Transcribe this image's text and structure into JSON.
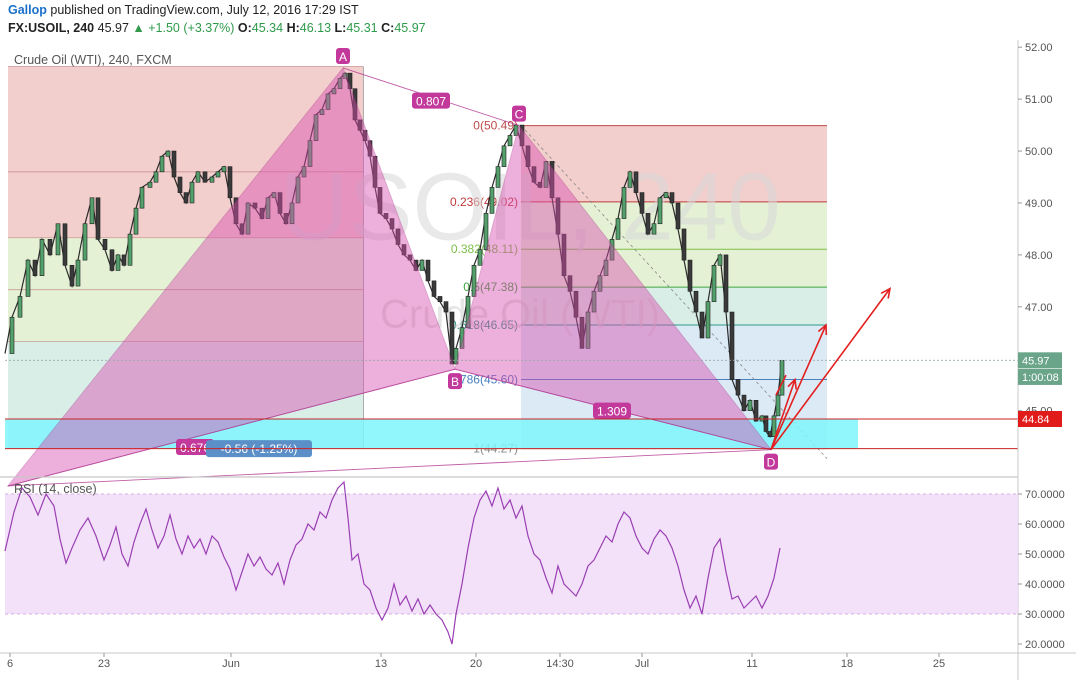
{
  "header": {
    "author": "Gallop",
    "published_text": "published on TradingView.com, July 12, 2016 17:29 IST",
    "symbol": "FX:USOIL, 240",
    "last": "45.97",
    "change": "+1.50 (+3.37%)",
    "ohlc": [
      {
        "label": "O:",
        "value": "45.34"
      },
      {
        "label": "H:",
        "value": "46.13"
      },
      {
        "label": "L:",
        "value": "45.31"
      },
      {
        "label": "C:",
        "value": "45.97"
      }
    ]
  },
  "chart_data": [
    {
      "type": "line",
      "title": "Crude Oil (WTI), 240, FXCM",
      "watermark": [
        "USOIL, 240",
        "Crude Oil (WTI)"
      ],
      "xlim": [
        0,
        1015
      ],
      "x_ticks": [
        {
          "label": "6",
          "x": 10
        },
        {
          "label": "23",
          "x": 104
        },
        {
          "label": "Jun",
          "x": 231
        },
        {
          "label": "13",
          "x": 381
        },
        {
          "label": "20",
          "x": 476
        },
        {
          "label": "14:30",
          "x": 560
        },
        {
          "label": "Jul",
          "x": 642
        },
        {
          "label": "11",
          "x": 752
        },
        {
          "label": "18",
          "x": 847
        },
        {
          "label": "25",
          "x": 939
        }
      ],
      "ylim": [
        43.8,
        52.1
      ],
      "y_ticks": [
        "52.00",
        "51.00",
        "50.00",
        "49.00",
        "48.00",
        "47.00",
        "45.00"
      ],
      "price_series": [
        [
          5,
          46.1
        ],
        [
          12,
          46.8
        ],
        [
          20,
          47.2
        ],
        [
          28,
          47.9
        ],
        [
          35,
          47.6
        ],
        [
          42,
          48.3
        ],
        [
          50,
          48.0
        ],
        [
          58,
          48.6
        ],
        [
          65,
          47.8
        ],
        [
          72,
          47.4
        ],
        [
          78,
          47.9
        ],
        [
          85,
          48.6
        ],
        [
          92,
          49.1
        ],
        [
          98,
          48.3
        ],
        [
          105,
          48.1
        ],
        [
          112,
          47.7
        ],
        [
          118,
          48.0
        ],
        [
          124,
          47.8
        ],
        [
          130,
          48.4
        ],
        [
          136,
          48.9
        ],
        [
          142,
          49.3
        ],
        [
          150,
          49.4
        ],
        [
          156,
          49.6
        ],
        [
          162,
          49.9
        ],
        [
          168,
          50.0
        ],
        [
          174,
          49.5
        ],
        [
          180,
          49.2
        ],
        [
          186,
          49.0
        ],
        [
          192,
          49.4
        ],
        [
          198,
          49.6
        ],
        [
          205,
          49.4
        ],
        [
          212,
          49.5
        ],
        [
          218,
          49.6
        ],
        [
          224,
          49.7
        ],
        [
          230,
          49.1
        ],
        [
          236,
          48.6
        ],
        [
          242,
          48.4
        ],
        [
          248,
          49.0
        ],
        [
          255,
          48.9
        ],
        [
          262,
          48.7
        ],
        [
          268,
          49.1
        ],
        [
          274,
          49.2
        ],
        [
          280,
          48.8
        ],
        [
          286,
          48.6
        ],
        [
          292,
          49.0
        ],
        [
          298,
          49.5
        ],
        [
          304,
          49.7
        ],
        [
          310,
          50.2
        ],
        [
          316,
          50.7
        ],
        [
          322,
          50.8
        ],
        [
          328,
          51.1
        ],
        [
          334,
          51.2
        ],
        [
          340,
          51.4
        ],
        [
          345,
          51.5
        ],
        [
          350,
          51.2
        ],
        [
          355,
          50.6
        ],
        [
          360,
          50.4
        ],
        [
          365,
          50.2
        ],
        [
          370,
          49.9
        ],
        [
          375,
          49.3
        ],
        [
          380,
          48.8
        ],
        [
          386,
          48.7
        ],
        [
          392,
          48.5
        ],
        [
          398,
          48.2
        ],
        [
          404,
          48.0
        ],
        [
          410,
          47.9
        ],
        [
          416,
          47.7
        ],
        [
          422,
          47.9
        ],
        [
          428,
          47.5
        ],
        [
          434,
          47.2
        ],
        [
          440,
          47.1
        ],
        [
          446,
          46.9
        ],
        [
          452,
          45.9
        ],
        [
          456,
          46.2
        ],
        [
          462,
          46.6
        ],
        [
          468,
          47.2
        ],
        [
          474,
          47.8
        ],
        [
          480,
          48.1
        ],
        [
          486,
          48.8
        ],
        [
          492,
          49.3
        ],
        [
          498,
          49.7
        ],
        [
          504,
          50.1
        ],
        [
          510,
          50.3
        ],
        [
          516,
          50.5
        ],
        [
          522,
          50.1
        ],
        [
          528,
          49.7
        ],
        [
          534,
          49.4
        ],
        [
          540,
          49.3
        ],
        [
          546,
          49.8
        ],
        [
          552,
          49.1
        ],
        [
          558,
          48.4
        ],
        [
          564,
          47.6
        ],
        [
          570,
          47.3
        ],
        [
          576,
          46.8
        ],
        [
          582,
          46.2
        ],
        [
          588,
          46.9
        ],
        [
          594,
          47.3
        ],
        [
          600,
          47.6
        ],
        [
          606,
          47.9
        ],
        [
          612,
          48.3
        ],
        [
          618,
          48.7
        ],
        [
          624,
          49.3
        ],
        [
          630,
          49.6
        ],
        [
          636,
          49.2
        ],
        [
          642,
          48.8
        ],
        [
          648,
          48.4
        ],
        [
          654,
          48.6
        ],
        [
          660,
          49.1
        ],
        [
          666,
          49.2
        ],
        [
          672,
          49.0
        ],
        [
          678,
          48.5
        ],
        [
          684,
          47.9
        ],
        [
          690,
          47.3
        ],
        [
          696,
          46.9
        ],
        [
          702,
          46.4
        ],
        [
          708,
          47.1
        ],
        [
          714,
          47.8
        ],
        [
          720,
          48.0
        ],
        [
          726,
          46.9
        ],
        [
          732,
          45.6
        ],
        [
          738,
          45.3
        ],
        [
          744,
          45.0
        ],
        [
          750,
          45.2
        ],
        [
          756,
          44.8
        ],
        [
          762,
          44.9
        ],
        [
          766,
          44.6
        ],
        [
          770,
          44.5
        ],
        [
          774,
          44.9
        ],
        [
          778,
          45.3
        ],
        [
          782,
          45.97
        ]
      ],
      "right_labels": [
        {
          "text": "45.97",
          "y": 45.97,
          "color": "#6aa58a"
        },
        {
          "text": "1:00:08",
          "y": 45.65,
          "color": "#6aa58a"
        },
        {
          "text": "44.84",
          "y": 44.84,
          "color": "#e11a1a"
        }
      ],
      "pattern_points": [
        {
          "label": "A",
          "x": 343,
          "price": 51.6
        },
        {
          "label": "B",
          "x": 455,
          "price": 45.8
        },
        {
          "label": "C",
          "x": 519,
          "price": 50.49
        },
        {
          "label": "D",
          "x": 771,
          "price": 44.25
        }
      ],
      "ratio_labels": [
        {
          "text": "0.807",
          "x": 431,
          "price": 50.97
        },
        {
          "text": "1.309",
          "x": 612,
          "price": 45.0
        },
        {
          "text": "0.676",
          "x": 195,
          "price": 44.3
        }
      ],
      "measure_label": {
        "text": "-0.56 (-1.25%)",
        "x": 259,
        "price": 44.28
      },
      "fib_levels": [
        {
          "label": "0(50.49)",
          "ratio": 0,
          "price": 50.49
        },
        {
          "label": "0.236(49.02)",
          "ratio": 0.236,
          "price": 49.02
        },
        {
          "label": "0.382(48.11)",
          "ratio": 0.382,
          "price": 48.11
        },
        {
          "label": "0.5(47.38)",
          "ratio": 0.5,
          "price": 47.38
        },
        {
          "label": "0.618(46.65)",
          "ratio": 0.618,
          "price": 46.65
        },
        {
          "label": "0.786(45.60)",
          "ratio": 0.786,
          "price": 45.6
        },
        {
          "label": "1(44.27)",
          "ratio": 1,
          "price": 44.27
        }
      ],
      "left_fib_levels": [
        51.63,
        49.6,
        48.33,
        47.33,
        46.33,
        44.84,
        44.27
      ],
      "hlines": [
        44.84,
        44.27
      ]
    },
    {
      "type": "line",
      "title": "RSI (14, close)",
      "ylim": [
        18,
        74
      ],
      "y_ticks": [
        "70.0000",
        "60.0000",
        "50.0000",
        "40.0000",
        "30.0000",
        "20.0000"
      ],
      "band": [
        30,
        70
      ],
      "rsi_series": [
        [
          5,
          51
        ],
        [
          14,
          64
        ],
        [
          22,
          72
        ],
        [
          30,
          69
        ],
        [
          38,
          63
        ],
        [
          46,
          70
        ],
        [
          54,
          66
        ],
        [
          60,
          55
        ],
        [
          66,
          47
        ],
        [
          72,
          52
        ],
        [
          80,
          58
        ],
        [
          88,
          62
        ],
        [
          96,
          56
        ],
        [
          104,
          48
        ],
        [
          110,
          53
        ],
        [
          116,
          59
        ],
        [
          122,
          50
        ],
        [
          128,
          46
        ],
        [
          134,
          54
        ],
        [
          140,
          60
        ],
        [
          146,
          65
        ],
        [
          152,
          58
        ],
        [
          158,
          52
        ],
        [
          164,
          56
        ],
        [
          170,
          63
        ],
        [
          176,
          55
        ],
        [
          182,
          50
        ],
        [
          188,
          56
        ],
        [
          194,
          52
        ],
        [
          200,
          55
        ],
        [
          206,
          50
        ],
        [
          212,
          56
        ],
        [
          218,
          54
        ],
        [
          224,
          49
        ],
        [
          230,
          45
        ],
        [
          236,
          38
        ],
        [
          242,
          44
        ],
        [
          248,
          50
        ],
        [
          254,
          46
        ],
        [
          260,
          49
        ],
        [
          266,
          45
        ],
        [
          272,
          43
        ],
        [
          278,
          47
        ],
        [
          284,
          40
        ],
        [
          290,
          48
        ],
        [
          296,
          53
        ],
        [
          302,
          55
        ],
        [
          308,
          60
        ],
        [
          314,
          58
        ],
        [
          320,
          64
        ],
        [
          326,
          62
        ],
        [
          332,
          68
        ],
        [
          338,
          72
        ],
        [
          344,
          74
        ],
        [
          348,
          62
        ],
        [
          352,
          48
        ],
        [
          358,
          50
        ],
        [
          364,
          40
        ],
        [
          370,
          38
        ],
        [
          376,
          32
        ],
        [
          382,
          28
        ],
        [
          388,
          32
        ],
        [
          394,
          40
        ],
        [
          400,
          33
        ],
        [
          406,
          36
        ],
        [
          412,
          31
        ],
        [
          418,
          35
        ],
        [
          424,
          30
        ],
        [
          430,
          33
        ],
        [
          436,
          30
        ],
        [
          442,
          28
        ],
        [
          448,
          24
        ],
        [
          452,
          20
        ],
        [
          456,
          30
        ],
        [
          462,
          40
        ],
        [
          468,
          52
        ],
        [
          474,
          62
        ],
        [
          480,
          68
        ],
        [
          486,
          71
        ],
        [
          492,
          66
        ],
        [
          498,
          72
        ],
        [
          504,
          65
        ],
        [
          510,
          68
        ],
        [
          516,
          62
        ],
        [
          522,
          66
        ],
        [
          528,
          56
        ],
        [
          534,
          50
        ],
        [
          540,
          48
        ],
        [
          546,
          42
        ],
        [
          552,
          37
        ],
        [
          558,
          46
        ],
        [
          564,
          40
        ],
        [
          570,
          38
        ],
        [
          576,
          36
        ],
        [
          582,
          40
        ],
        [
          588,
          46
        ],
        [
          594,
          48
        ],
        [
          600,
          52
        ],
        [
          606,
          56
        ],
        [
          612,
          54
        ],
        [
          618,
          60
        ],
        [
          624,
          64
        ],
        [
          630,
          62
        ],
        [
          636,
          56
        ],
        [
          642,
          52
        ],
        [
          648,
          50
        ],
        [
          654,
          55
        ],
        [
          660,
          58
        ],
        [
          666,
          56
        ],
        [
          672,
          52
        ],
        [
          678,
          46
        ],
        [
          684,
          38
        ],
        [
          690,
          32
        ],
        [
          696,
          36
        ],
        [
          702,
          30
        ],
        [
          708,
          42
        ],
        [
          714,
          52
        ],
        [
          720,
          55
        ],
        [
          726,
          44
        ],
        [
          732,
          35
        ],
        [
          738,
          36
        ],
        [
          744,
          32
        ],
        [
          750,
          34
        ],
        [
          756,
          36
        ],
        [
          762,
          32
        ],
        [
          768,
          36
        ],
        [
          774,
          42
        ],
        [
          780,
          52
        ]
      ]
    }
  ],
  "colors": {
    "pattern_fill": "#d94fb0",
    "fib_red": "#e8a6a2",
    "fib_green": "#cfe6b2",
    "fib_teal": "#b9e0d3",
    "fib_blue": "#bfd9ee",
    "cyan_box": "#7ff6fb",
    "rsi_line": "#9a3fb3",
    "rsi_band": "#f1dcf8",
    "arrow": "#e32020",
    "price_up": "#53a06b",
    "price_line": "#2a2a2a"
  }
}
